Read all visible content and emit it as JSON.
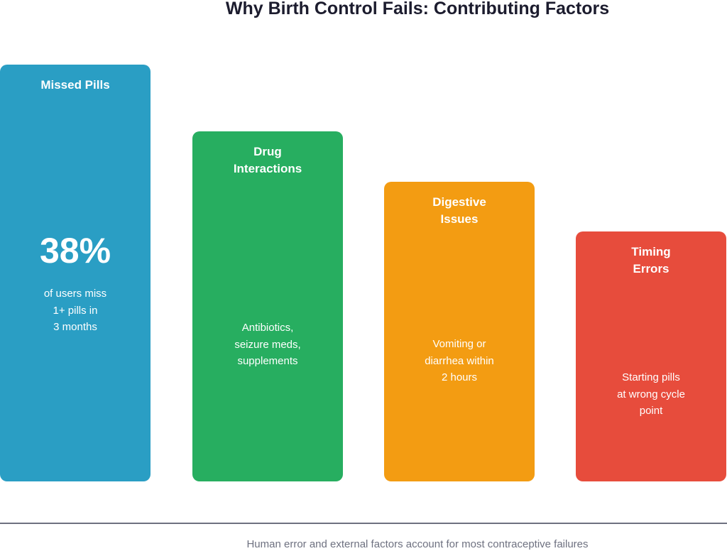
{
  "title": "Why Birth Control Fails: Contributing Factors",
  "factors": [
    {
      "label": "Missed Pills",
      "stat": "38%",
      "description": [
        "of users miss",
        "1+ pills in",
        "3 months"
      ],
      "color": "#2a9ec4"
    },
    {
      "label": [
        "Drug",
        "Interactions"
      ],
      "description": [
        "Antibiotics,",
        "seizure meds,",
        "supplements"
      ],
      "color": "#27ae60"
    },
    {
      "label": [
        "Digestive",
        "Issues"
      ],
      "description": [
        "Vomiting or",
        "diarrhea within",
        "2 hours"
      ],
      "color": "#f39c12"
    },
    {
      "label": [
        "Timing",
        "Errors"
      ],
      "description": [
        "Starting pills",
        "at wrong cycle",
        "point"
      ],
      "color": "#e74c3c"
    }
  ],
  "footer": "Human error and external factors account for most contraceptive failures"
}
